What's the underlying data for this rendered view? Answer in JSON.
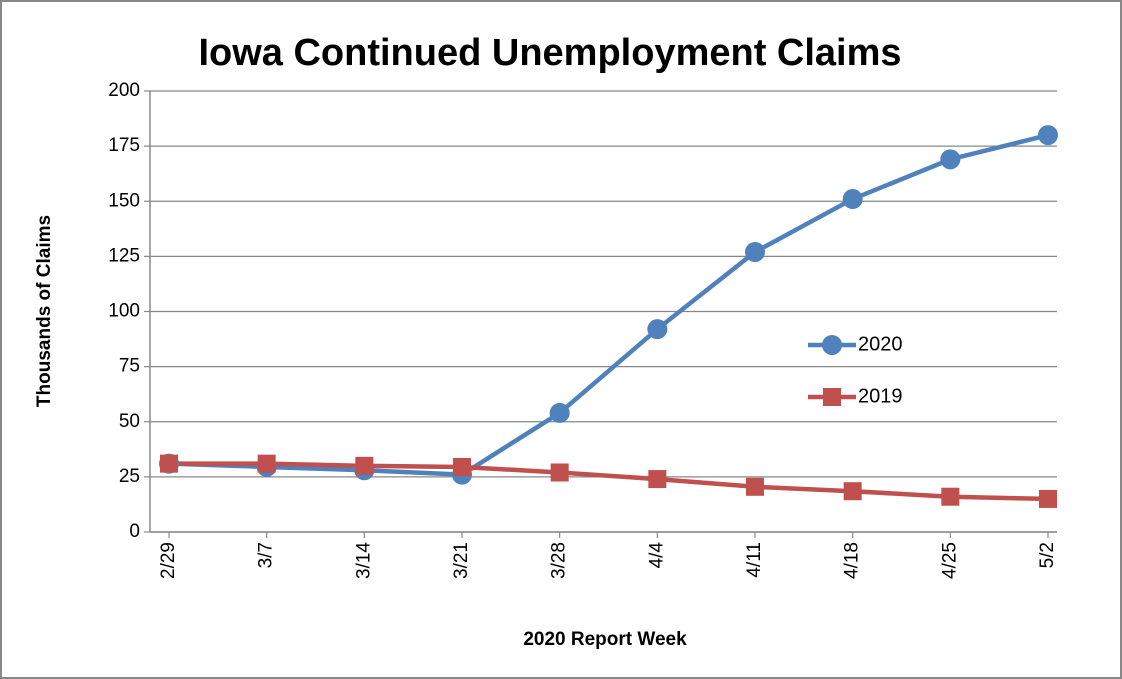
{
  "chart_data": {
    "type": "line",
    "title": "Iowa Continued Unemployment Claims",
    "x_label": "2020 Report Week",
    "y_label": "Thousands of Claims",
    "categories": [
      "2/29",
      "3/7",
      "3/14",
      "3/21",
      "3/28",
      "4/4",
      "4/11",
      "4/18",
      "4/25",
      "5/2"
    ],
    "series": [
      {
        "name": "2020",
        "color": "#4f81bd",
        "marker": "circle",
        "values": [
          31,
          29.5,
          28,
          26,
          54,
          92,
          127,
          151,
          169,
          180
        ]
      },
      {
        "name": "2019",
        "color": "#c0504d",
        "marker": "square",
        "values": [
          31,
          31,
          30,
          29.5,
          27,
          24,
          20.5,
          18.5,
          16,
          15
        ]
      }
    ],
    "ylim": [
      0,
      200
    ],
    "yticks": [
      0,
      25,
      50,
      75,
      100,
      125,
      150,
      175,
      200
    ],
    "grid": true,
    "legend": "right"
  }
}
